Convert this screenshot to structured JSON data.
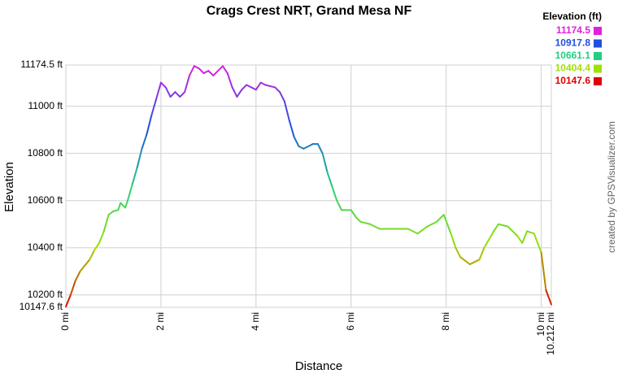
{
  "chart_data": {
    "type": "line",
    "title": "Crags Crest NRT, Grand Mesa NF",
    "x_label": "Distance",
    "y_label": "Elevation",
    "credit": "created by GPSVisualizer.com",
    "color_scale": {
      "title": "Elevation (ft)",
      "stops": [
        {
          "value": 11174.5,
          "color": "#e020e0"
        },
        {
          "value": 10917.8,
          "color": "#2050e0"
        },
        {
          "value": 10661.1,
          "color": "#20d080"
        },
        {
          "value": 10404.4,
          "color": "#a0e000"
        },
        {
          "value": 10147.6,
          "color": "#e00000"
        }
      ]
    },
    "x": [
      0,
      0.1,
      0.2,
      0.3,
      0.5,
      0.6,
      0.7,
      0.8,
      0.9,
      1.0,
      1.1,
      1.15,
      1.25,
      1.3,
      1.4,
      1.5,
      1.6,
      1.7,
      1.8,
      1.9,
      2.0,
      2.1,
      2.2,
      2.3,
      2.4,
      2.5,
      2.6,
      2.7,
      2.8,
      2.9,
      3.0,
      3.1,
      3.3,
      3.4,
      3.5,
      3.6,
      3.7,
      3.8,
      4.0,
      4.1,
      4.2,
      4.4,
      4.5,
      4.6,
      4.7,
      4.8,
      4.9,
      5.0,
      5.2,
      5.3,
      5.4,
      5.5,
      5.6,
      5.7,
      5.8,
      5.9,
      6.0,
      6.1,
      6.2,
      6.4,
      6.6,
      6.8,
      7.0,
      7.2,
      7.4,
      7.6,
      7.8,
      7.95,
      8.1,
      8.2,
      8.3,
      8.5,
      8.7,
      8.8,
      9.0,
      9.1,
      9.3,
      9.5,
      9.6,
      9.7,
      9.85,
      10.0,
      10.1,
      10.212
    ],
    "values": [
      10150,
      10200,
      10260,
      10300,
      10350,
      10390,
      10420,
      10470,
      10540,
      10555,
      10560,
      10590,
      10570,
      10600,
      10670,
      10740,
      10820,
      10880,
      10960,
      11030,
      11100,
      11080,
      11040,
      11060,
      11040,
      11060,
      11130,
      11170,
      11160,
      11140,
      11150,
      11130,
      11170,
      11140,
      11080,
      11040,
      11070,
      11090,
      11070,
      11100,
      11090,
      11080,
      11060,
      11020,
      10940,
      10870,
      10830,
      10820,
      10840,
      10840,
      10800,
      10720,
      10660,
      10600,
      10560,
      10560,
      10560,
      10530,
      10510,
      10500,
      10480,
      10480,
      10480,
      10480,
      10460,
      10490,
      10510,
      10540,
      10460,
      10400,
      10360,
      10330,
      10350,
      10400,
      10470,
      10500,
      10490,
      10450,
      10420,
      10470,
      10460,
      10380,
      10220,
      10160
    ],
    "xlim": [
      0,
      10.212
    ],
    "ylim": [
      10147.6,
      11174.5
    ],
    "xticks": [
      {
        "value": 0,
        "label": "0 mi"
      },
      {
        "value": 2,
        "label": "2 mi"
      },
      {
        "value": 4,
        "label": "4 mi"
      },
      {
        "value": 6,
        "label": "6 mi"
      },
      {
        "value": 8,
        "label": "8 mi"
      },
      {
        "value": 10,
        "label": "10 mi"
      },
      {
        "value": 10.212,
        "label": "10.212 mi"
      }
    ],
    "yticks": [
      {
        "value": 10147.6,
        "label": "10147.6 ft"
      },
      {
        "value": 10200,
        "label": "10200 ft"
      },
      {
        "value": 10400,
        "label": "10400 ft"
      },
      {
        "value": 10600,
        "label": "10600 ft"
      },
      {
        "value": 10800,
        "label": "10800 ft"
      },
      {
        "value": 11000,
        "label": "11000 ft"
      },
      {
        "value": 11174.5,
        "label": "11174.5 ft"
      }
    ],
    "grid": true
  }
}
